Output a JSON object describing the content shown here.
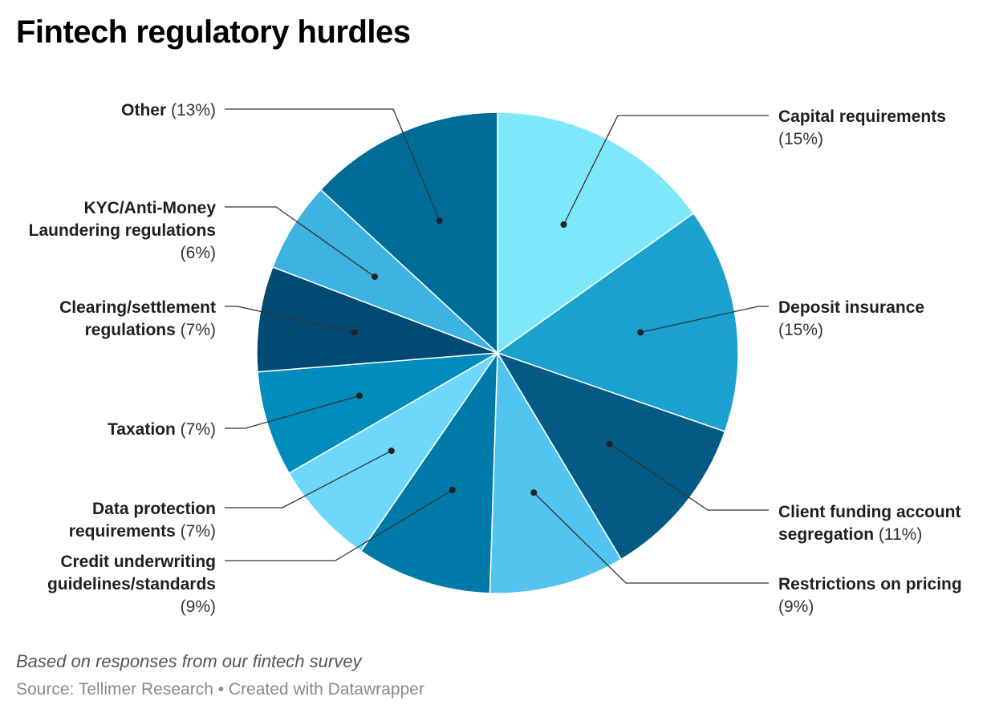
{
  "chart_data": {
    "type": "pie",
    "title": "Fintech regulatory hurdles",
    "notes": "Based on responses from our fintech survey",
    "source": "Source: Tellimer Research • Created with Datawrapper",
    "slices": [
      {
        "label": "Capital requirements",
        "value": 15,
        "pct_label": "(15%)",
        "color": "#7ee8fb"
      },
      {
        "label": "Deposit insurance",
        "value": 15,
        "pct_label": "(15%)",
        "color": "#1aa1cf"
      },
      {
        "label": "Client funding account segregation",
        "value": 11,
        "pct_label": "(11%)",
        "color": "#035a85"
      },
      {
        "label": "Restrictions on pricing",
        "value": 9,
        "pct_label": "(9%)",
        "color": "#52c4f0"
      },
      {
        "label": "Credit underwriting guidelines/standards",
        "value": 9,
        "pct_label": "(9%)",
        "color": "#007aa8"
      },
      {
        "label": "Data protection requirements",
        "value": 7,
        "pct_label": "(7%)",
        "color": "#6dd8fc"
      },
      {
        "label": "Taxation",
        "value": 7,
        "pct_label": "(7%)",
        "color": "#008cbc"
      },
      {
        "label": "Clearing/settlement regulations",
        "value": 7,
        "pct_label": "(7%)",
        "color": "#024a73"
      },
      {
        "label": "KYC/Anti-Money Laundering regulations",
        "value": 6,
        "pct_label": "(6%)",
        "color": "#3cb3e0"
      },
      {
        "label": "Other",
        "value": 13,
        "pct_label": "(13%)",
        "color": "#006d98"
      }
    ]
  }
}
